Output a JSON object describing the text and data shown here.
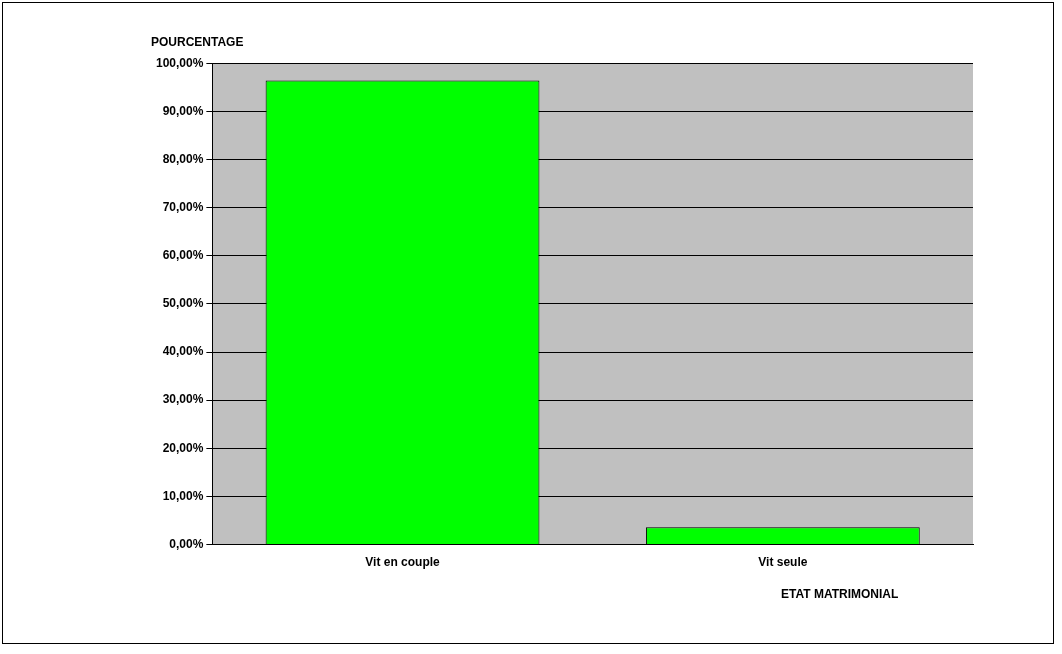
{
  "chart_data": {
    "type": "bar",
    "xlabel": "ETAT MATRIMONIAL",
    "ylabel": "POURCENTAGE",
    "categories": [
      "Vit en couple",
      "Vit seule"
    ],
    "values": [
      96.4,
      3.6
    ],
    "color": "#00ff00",
    "ylim": [
      0,
      100
    ],
    "yticks": [
      {
        "value": 0,
        "label": "0,00%"
      },
      {
        "value": 10,
        "label": "10,00%"
      },
      {
        "value": 20,
        "label": "20,00%"
      },
      {
        "value": 30,
        "label": "30,00%"
      },
      {
        "value": 40,
        "label": "40,00%"
      },
      {
        "value": 50,
        "label": "50,00%"
      },
      {
        "value": 60,
        "label": "60,00%"
      },
      {
        "value": 70,
        "label": "70,00%"
      },
      {
        "value": 80,
        "label": "80,00%"
      },
      {
        "value": 90,
        "label": "90,00%"
      },
      {
        "value": 100,
        "label": "100,00%"
      }
    ],
    "grid": "y"
  }
}
